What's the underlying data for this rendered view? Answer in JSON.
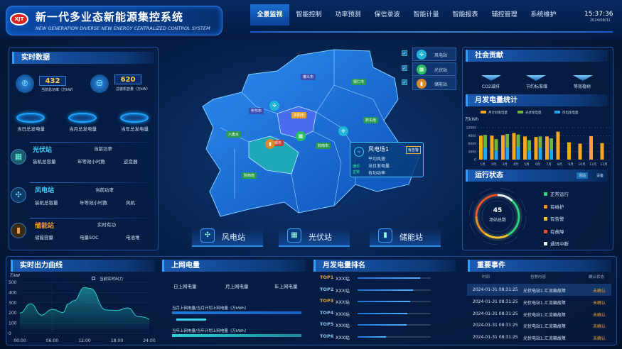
{
  "header": {
    "logo_text": "XJT",
    "title": "新一代多业态新能源集控系统",
    "subtitle": "NEW GENERATION DIVERSE NEW ENERGY CENTRALIZED CONTROL SYSTEM",
    "nav": [
      {
        "label": "全景监视",
        "active": true
      },
      {
        "label": "智能控制"
      },
      {
        "label": "功率预测"
      },
      {
        "label": "保信录波"
      },
      {
        "label": "智能计量"
      },
      {
        "label": "智能报表"
      },
      {
        "label": "辅控管理"
      },
      {
        "label": "系统维护"
      }
    ],
    "time": "15:37:36",
    "date": "2024/08/31"
  },
  "realtime": {
    "title": "实时数据",
    "power_value": "432",
    "power_label": "当前总功率（万kW）",
    "capacity_value": "620",
    "capacity_label": "总装机容量（万kW）",
    "day_label": "当日总发电量",
    "month_label": "当月总发电量",
    "year_label": "当年总发电量",
    "pv": {
      "name": "光伏站",
      "current": "当前功率",
      "f1": "装机总容量",
      "f2": "年等效小时数",
      "f3": "逆变器"
    },
    "wind": {
      "name": "风电站",
      "current": "当前功率",
      "f1": "装机总容量",
      "f2": "年等效小时数",
      "f3": "风机"
    },
    "storage": {
      "name": "储能站",
      "current": "实时有功",
      "f1": "储能容量",
      "f2": "电量SOC",
      "f3": "电池堆"
    }
  },
  "map": {
    "legend": [
      {
        "label": "风电站",
        "icon": "wind-turbine-icon",
        "checked": true,
        "color": "#1fb5d8"
      },
      {
        "label": "光伏站",
        "icon": "solar-panel-icon",
        "checked": true,
        "color": "#28c060"
      },
      {
        "label": "储能站",
        "icon": "battery-icon",
        "checked": true,
        "color": "#d98a2a"
      }
    ],
    "regions": [
      "遵义市",
      "铜仁市",
      "毕节市",
      "贵阳市",
      "黔东南",
      "六盘水",
      "安顺市",
      "黔南市",
      "黔西南"
    ],
    "popup": {
      "name": "风电场1",
      "badge": "有告警",
      "rows": [
        "平均风速",
        "当日发电量",
        "有功功率"
      ],
      "status1": "通讯",
      "status2": "正常"
    },
    "buttons": [
      "风电站",
      "光伏站",
      "储能站"
    ]
  },
  "social": {
    "title": "社会贡献",
    "items": [
      "CO2减排",
      "节约标准煤",
      "等效植树"
    ]
  },
  "monthly_chart": {
    "title": "月发电量统计",
    "chart_data": {
      "type": "bar",
      "ylabel": "万kWh",
      "ylim": [
        0,
        12000
      ],
      "yticks": [
        0,
        3000,
        6000,
        9000,
        12000
      ],
      "categories": [
        "1月",
        "2月",
        "3月",
        "4月",
        "5月",
        "6月",
        "7月",
        "8月",
        "9月",
        "10月",
        "11月",
        "12月"
      ],
      "series": [
        {
          "name": "月计划发电量",
          "color": "#f5a623",
          "values": [
            9000,
            9000,
            9200,
            10000,
            8700,
            8500,
            8700,
            10500,
            6500,
            6000,
            8800,
            6200
          ]
        },
        {
          "name": "光伏发电量",
          "color": "#6fb43f",
          "values": [
            4800,
            4300,
            5100,
            4600,
            3900,
            4300,
            4400,
            null,
            null,
            null,
            null,
            null
          ]
        },
        {
          "name": "风电发电量",
          "color": "#1ea7f0",
          "values": [
            4500,
            3400,
            4500,
            4800,
            3400,
            4400,
            3600,
            null,
            null,
            null,
            null,
            null
          ]
        }
      ],
      "legend": "top",
      "grid": true
    }
  },
  "status": {
    "title": "运行状态",
    "tabs": [
      "场站",
      "设备"
    ],
    "total": "45",
    "total_label": "场站总数",
    "legend": [
      {
        "label": "正常运行",
        "color": "#2ed47a",
        "share": 0.3
      },
      {
        "label": "有维护",
        "color": "#f08a24",
        "share": 0.15
      },
      {
        "label": "有告警",
        "color": "#f2c230",
        "share": 0.18
      },
      {
        "label": "有故障",
        "color": "#f0502a",
        "share": 0.25
      },
      {
        "label": "通讯中断",
        "color": "#e8eef5",
        "share": 0.12
      }
    ]
  },
  "curve": {
    "title": "实时出力曲线",
    "unit": "万kW",
    "legend": "当前实时出力",
    "chart_data": {
      "type": "area",
      "ylabel": "万kW",
      "ylim": [
        0,
        500
      ],
      "yticks": [
        0,
        100,
        200,
        300,
        400,
        500
      ],
      "xticks": [
        "00:00",
        "06:00",
        "12:00",
        "18:00",
        "24:00"
      ],
      "x": [
        0,
        2,
        4,
        6,
        8,
        9,
        10,
        12,
        13,
        16,
        18,
        20,
        22,
        23,
        24
      ],
      "y": [
        200,
        290,
        180,
        235,
        205,
        290,
        320,
        450,
        440,
        230,
        225,
        250,
        165,
        160,
        140
      ],
      "series_name": "当前实时出力",
      "grid": true
    }
  },
  "grid_power": {
    "title": "上网电量",
    "cols": [
      "日上网电量",
      "月上网电量",
      "年上网电量"
    ],
    "month_label": "当月上网电量/当月计划上网电量（万kWh）",
    "year_label": "当年上网电量/当年计划上网电量（万kWh）"
  },
  "ranking": {
    "title": "月发电量排名",
    "items": [
      {
        "rank": "TOP1",
        "name": "XXX站",
        "pct": 0.85
      },
      {
        "rank": "TOP2",
        "name": "XXX站",
        "pct": 0.76
      },
      {
        "rank": "TOP3",
        "name": "XXX站",
        "pct": 0.72
      },
      {
        "rank": "TOP4",
        "name": "XXX站",
        "pct": 0.68
      },
      {
        "rank": "TOP5",
        "name": "XXX站",
        "pct": 0.67
      },
      {
        "rank": "TOP6",
        "name": "XXX站",
        "pct": 0.39
      }
    ]
  },
  "events": {
    "title": "重要事件",
    "headers": [
      "时间",
      "告警内容",
      "确认状态"
    ],
    "rows": [
      [
        "2024-01-31 08:31:25",
        "光伏电站1.汇流箱故障",
        "未确认"
      ],
      [
        "2024-01-31 08:31:25",
        "光伏电站1.汇流箱故障",
        "未确认"
      ],
      [
        "2024-01-31 08:31:25",
        "光伏电站1.汇流箱故障",
        "未确认"
      ],
      [
        "2024-01-31 08:31:25",
        "光伏电站1.汇流箱故障",
        "未确认"
      ],
      [
        "2024-01-31 08:31:25",
        "光伏电站1.汇流箱故障",
        "未确认"
      ]
    ]
  }
}
